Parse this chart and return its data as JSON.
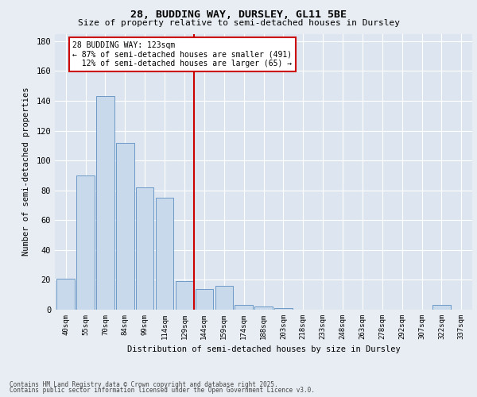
{
  "title_line1": "28, BUDDING WAY, DURSLEY, GL11 5BE",
  "title_line2": "Size of property relative to semi-detached houses in Dursley",
  "xlabel": "Distribution of semi-detached houses by size in Dursley",
  "ylabel": "Number of semi-detached properties",
  "categories": [
    "40sqm",
    "55sqm",
    "70sqm",
    "84sqm",
    "99sqm",
    "114sqm",
    "129sqm",
    "144sqm",
    "159sqm",
    "174sqm",
    "188sqm",
    "203sqm",
    "218sqm",
    "233sqm",
    "248sqm",
    "263sqm",
    "278sqm",
    "292sqm",
    "307sqm",
    "322sqm",
    "337sqm"
  ],
  "values": [
    21,
    90,
    143,
    112,
    82,
    75,
    19,
    14,
    16,
    3,
    2,
    1,
    0,
    0,
    0,
    0,
    0,
    0,
    0,
    3,
    0
  ],
  "bar_color": "#c9d9ec",
  "bar_edge_color": "#5b8ec0",
  "background_color": "#dde6f0",
  "grid_color": "#ffffff",
  "vline_color": "#cc0000",
  "vline_pos": 6.5,
  "annotation_text": "28 BUDDING WAY: 123sqm\n← 87% of semi-detached houses are smaller (491)\n  12% of semi-detached houses are larger (65) →",
  "annotation_box_facecolor": "#ffffff",
  "annotation_box_edgecolor": "#cc0000",
  "footnote1": "Contains HM Land Registry data © Crown copyright and database right 2025.",
  "footnote2": "Contains public sector information licensed under the Open Government Licence v3.0.",
  "ylim": [
    0,
    185
  ],
  "yticks": [
    0,
    20,
    40,
    60,
    80,
    100,
    120,
    140,
    160,
    180
  ],
  "fig_bg": "#e8edf3"
}
